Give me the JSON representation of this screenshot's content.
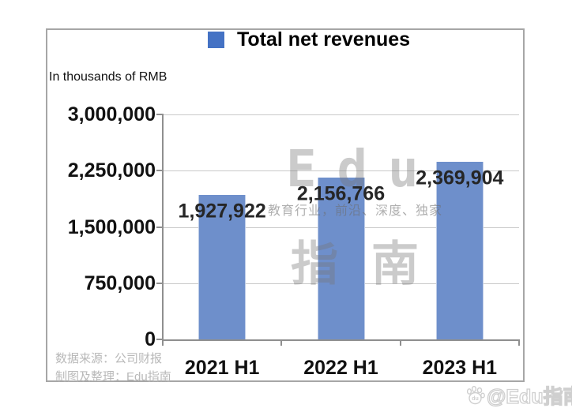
{
  "legend": {
    "label": "Total net revenues",
    "color": "#4472C4"
  },
  "chart_data": {
    "type": "bar",
    "title": "Total net revenues",
    "unit_label": "In thousands of RMB",
    "categories": [
      "2021 H1",
      "2022 H1",
      "2023 H1"
    ],
    "values": [
      1927922,
      2156766,
      2369904
    ],
    "value_labels": [
      "1,927,922",
      "2,156,766",
      "2,369,904"
    ],
    "ylim": [
      0,
      3000000
    ],
    "yticks": [
      3000000,
      2250000,
      1500000,
      750000,
      0
    ],
    "ytick_labels": [
      "3,000,000",
      "2,250,000",
      "1,500,000",
      "750,000",
      "0"
    ],
    "grid": true,
    "legend_position": "top",
    "bar_color": "#6E8FCB"
  },
  "watermark": {
    "line1": "Edu",
    "line2": "指南",
    "tagline": "教育行业，前沿、深度、独家",
    "corner": "@Edu指南",
    "corner_icon": "baidu-paw-icon"
  },
  "source": {
    "line1": "数据来源：公司财报",
    "line2": "制图及整理：Edu指南"
  }
}
